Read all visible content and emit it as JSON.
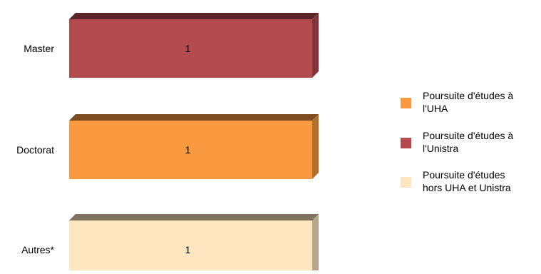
{
  "chart_data": {
    "type": "bar",
    "orientation": "horizontal",
    "style": "3d-stacked-100",
    "categories": [
      "Master",
      "Doctorat",
      "Autres*"
    ],
    "series": [
      {
        "name": "Poursuite d'études à l'UHA",
        "legend_lines": [
          "Poursuite d'études à",
          "l'UHA"
        ],
        "color": "#F99A41",
        "values": [
          0,
          1,
          0
        ],
        "labels": [
          "",
          "1",
          ""
        ]
      },
      {
        "name": "Poursuite d'études à l'Unistra",
        "legend_lines": [
          "Poursuite d'études à",
          "l'Unistra"
        ],
        "color": "#B34A4E",
        "values": [
          1,
          0,
          0
        ],
        "labels": [
          "1",
          "",
          ""
        ]
      },
      {
        "name": "Poursuite d'études hors UHA et Unistra",
        "legend_lines": [
          "Poursuite d'études",
          "hors UHA et Unistra"
        ],
        "color": "#FEE6C0",
        "values": [
          0,
          0,
          1
        ],
        "labels": [
          "",
          "",
          "1"
        ]
      }
    ],
    "title": "",
    "xlabel": "",
    "ylabel": "",
    "grid": false,
    "axes_visible": false,
    "legend_position": "right"
  }
}
